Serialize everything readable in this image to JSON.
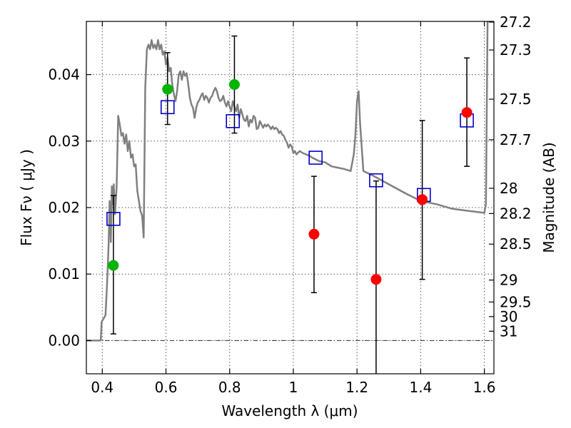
{
  "chart_data": {
    "type": "scatter",
    "xlabel": "Wavelength  λ (μm)",
    "ylabel": "Flux  Fν  ( μJy )",
    "ylabel_right": "Magnitude (AB)",
    "xlim": [
      0.35,
      1.63
    ],
    "ylim": [
      -0.005,
      0.048
    ],
    "x_ticks": [
      {
        "value": 0.4,
        "label": "0.4"
      },
      {
        "value": 0.6,
        "label": "0.6"
      },
      {
        "value": 0.8,
        "label": "0.8"
      },
      {
        "value": 1.0,
        "label": "1"
      },
      {
        "value": 1.2,
        "label": "1.2"
      },
      {
        "value": 1.4,
        "label": "1.4"
      },
      {
        "value": 1.6,
        "label": "1.6"
      }
    ],
    "y_ticks": [
      {
        "value": 0.0,
        "label": "0.00"
      },
      {
        "value": 0.01,
        "label": "0.01"
      },
      {
        "value": 0.02,
        "label": "0.02"
      },
      {
        "value": 0.03,
        "label": "0.03"
      },
      {
        "value": 0.04,
        "label": "0.04"
      }
    ],
    "mag_ticks": [
      {
        "label": "27.2",
        "flux": 0.0479
      },
      {
        "label": "27.3",
        "flux": 0.0437
      },
      {
        "label": "27.5",
        "flux": 0.0363
      },
      {
        "label": "27.7",
        "flux": 0.0302
      },
      {
        "label": "28",
        "flux": 0.0229
      },
      {
        "label": "28.2",
        "flux": 0.0191
      },
      {
        "label": "28.5",
        "flux": 0.0145
      },
      {
        "label": "29",
        "flux": 0.0091
      },
      {
        "label": "29.5",
        "flux": 0.0058
      },
      {
        "label": "30",
        "flux": 0.0036
      },
      {
        "label": "31",
        "flux": 0.0014
      }
    ],
    "grid": true,
    "model_spectrum": {
      "color": "#808080",
      "x": [
        0.35,
        0.395,
        0.398,
        0.41,
        0.415,
        0.42,
        0.423,
        0.427,
        0.43,
        0.433,
        0.436,
        0.44,
        0.445,
        0.45,
        0.455,
        0.46,
        0.465,
        0.47,
        0.475,
        0.48,
        0.485,
        0.49,
        0.495,
        0.5,
        0.505,
        0.51,
        0.515,
        0.52,
        0.525,
        0.53,
        0.535,
        0.54,
        0.545,
        0.55,
        0.555,
        0.56,
        0.565,
        0.57,
        0.575,
        0.58,
        0.585,
        0.59,
        0.595,
        0.6,
        0.605,
        0.61,
        0.615,
        0.62,
        0.625,
        0.63,
        0.635,
        0.64,
        0.645,
        0.65,
        0.655,
        0.66,
        0.665,
        0.67,
        0.675,
        0.68,
        0.685,
        0.69,
        0.695,
        0.7,
        0.705,
        0.71,
        0.715,
        0.72,
        0.725,
        0.73,
        0.735,
        0.74,
        0.745,
        0.75,
        0.755,
        0.76,
        0.765,
        0.77,
        0.775,
        0.78,
        0.785,
        0.79,
        0.795,
        0.8,
        0.805,
        0.81,
        0.815,
        0.82,
        0.825,
        0.83,
        0.835,
        0.84,
        0.845,
        0.85,
        0.855,
        0.86,
        0.865,
        0.87,
        0.875,
        0.88,
        0.885,
        0.89,
        0.895,
        0.9,
        0.905,
        0.91,
        0.915,
        0.92,
        0.925,
        0.93,
        0.935,
        0.94,
        0.945,
        0.95,
        0.955,
        0.96,
        0.965,
        0.97,
        0.975,
        0.98,
        0.985,
        0.99,
        0.995,
        1.0,
        1.005,
        1.01,
        1.02,
        1.03,
        1.04,
        1.05,
        1.06,
        1.08,
        1.1,
        1.12,
        1.14,
        1.16,
        1.18,
        1.19,
        1.195,
        1.2,
        1.205,
        1.21,
        1.22,
        1.25,
        1.3,
        1.35,
        1.4,
        1.45,
        1.5,
        1.55,
        1.6,
        1.605,
        1.61
      ],
      "y": [
        0.0,
        0.0,
        0.0028,
        0.0038,
        0.0085,
        0.0145,
        0.021,
        0.0148,
        0.0232,
        0.0205,
        0.0235,
        0.019,
        0.023,
        0.0338,
        0.0325,
        0.0308,
        0.0312,
        0.0296,
        0.031,
        0.0285,
        0.03,
        0.0275,
        0.028,
        0.0262,
        0.0265,
        0.0225,
        0.021,
        0.0195,
        0.0188,
        0.0155,
        0.038,
        0.0438,
        0.0445,
        0.0438,
        0.0452,
        0.044,
        0.0445,
        0.0438,
        0.0452,
        0.0438,
        0.0445,
        0.043,
        0.0435,
        0.0415,
        0.0425,
        0.0405,
        0.041,
        0.0385,
        0.037,
        0.036,
        0.0375,
        0.04,
        0.0405,
        0.0392,
        0.0405,
        0.0398,
        0.0402,
        0.0385,
        0.0365,
        0.0355,
        0.035,
        0.0335,
        0.035,
        0.0358,
        0.0362,
        0.0368,
        0.0372,
        0.0362,
        0.0368,
        0.0365,
        0.0358,
        0.0365,
        0.0368,
        0.0375,
        0.038,
        0.0375,
        0.0365,
        0.036,
        0.0362,
        0.0368,
        0.0358,
        0.0352,
        0.036,
        0.0352,
        0.0345,
        0.036,
        0.0352,
        0.0345,
        0.0355,
        0.0335,
        0.0348,
        0.034,
        0.0332,
        0.033,
        0.0338,
        0.0322,
        0.0332,
        0.0328,
        0.0338,
        0.0335,
        0.0318,
        0.032,
        0.033,
        0.0325,
        0.032,
        0.0325,
        0.0322,
        0.0325,
        0.0322,
        0.0318,
        0.0322,
        0.0318,
        0.032,
        0.0318,
        0.0312,
        0.0315,
        0.031,
        0.0308,
        0.0302,
        0.0298,
        0.029,
        0.0295,
        0.0292,
        0.0282,
        0.0285,
        0.028,
        0.0285,
        0.0282,
        0.028,
        0.0278,
        0.0275,
        0.027,
        0.0268,
        0.0262,
        0.026,
        0.0258,
        0.0255,
        0.028,
        0.0308,
        0.036,
        0.0375,
        0.0325,
        0.0255,
        0.0248,
        0.0235,
        0.0222,
        0.021,
        0.0205,
        0.0198,
        0.0195,
        0.0192,
        0.0205,
        0.048
      ]
    },
    "model_photometry": {
      "marker": "open-square",
      "color": "#0000cc",
      "x": [
        0.435,
        0.605,
        0.81,
        1.07,
        1.26,
        1.41,
        1.545
      ],
      "y": [
        0.0183,
        0.0351,
        0.033,
        0.0275,
        0.0241,
        0.0219,
        0.0331
      ]
    },
    "observed_green": {
      "marker": "filled-circle",
      "color": "#00b400",
      "x": [
        0.435,
        0.605,
        0.815
      ],
      "y": [
        0.0113,
        0.0378,
        0.0385
      ]
    },
    "observed_red": {
      "marker": "filled-circle",
      "color": "#ff0000",
      "x": [
        1.065,
        1.26,
        1.405,
        1.545
      ],
      "y": [
        0.016,
        0.0092,
        0.0212,
        0.0343
      ]
    },
    "error_bars": {
      "color": "#000000",
      "x": [
        0.435,
        0.605,
        0.815,
        1.065,
        1.26,
        1.405,
        1.545
      ],
      "low": [
        0.001,
        0.0325,
        0.0312,
        0.0072,
        -0.0055,
        0.0092,
        0.0262
      ],
      "high": [
        0.0218,
        0.0433,
        0.0458,
        0.0247,
        0.024,
        0.0331,
        0.0425
      ]
    }
  }
}
